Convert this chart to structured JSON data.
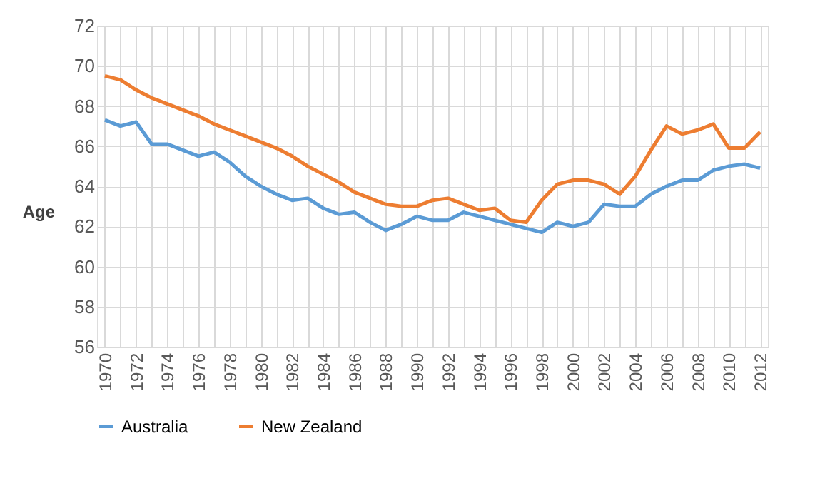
{
  "chart_data": {
    "type": "line",
    "ylabel": "Age",
    "categories": [
      "1970",
      null,
      "1972",
      null,
      "1974",
      null,
      "1976",
      null,
      "1978",
      null,
      "1980",
      null,
      "1982",
      null,
      "1984",
      null,
      "1986",
      null,
      "1988",
      null,
      "1990",
      null,
      "1992",
      null,
      "1994",
      null,
      "1996",
      null,
      "1998",
      null,
      "2000",
      null,
      "2002",
      null,
      "2004",
      null,
      "2006",
      null,
      "2008",
      null,
      "2010",
      null,
      "2012"
    ],
    "series": [
      {
        "name": "Australia",
        "color": "#5b9bd5",
        "values": [
          67.3,
          67.0,
          67.2,
          66.1,
          66.1,
          65.8,
          65.5,
          65.7,
          65.2,
          64.5,
          64.0,
          63.6,
          63.3,
          63.4,
          62.9,
          62.6,
          62.7,
          62.2,
          61.8,
          62.1,
          62.5,
          62.3,
          62.3,
          62.7,
          62.5,
          62.3,
          62.1,
          61.9,
          61.7,
          62.2,
          62.0,
          62.2,
          63.1,
          63.0,
          63.0,
          63.6,
          64.0,
          64.3,
          64.3,
          64.8,
          65.0,
          65.1,
          64.9
        ]
      },
      {
        "name": "New Zealand",
        "color": "#ed7d31",
        "values": [
          69.5,
          69.3,
          68.8,
          68.4,
          68.1,
          67.8,
          67.5,
          67.1,
          66.8,
          66.5,
          66.2,
          65.9,
          65.5,
          65.0,
          64.6,
          64.2,
          63.7,
          63.4,
          63.1,
          63.0,
          63.0,
          63.3,
          63.4,
          63.1,
          62.8,
          62.9,
          62.3,
          62.2,
          63.3,
          64.1,
          64.3,
          64.3,
          64.1,
          63.6,
          64.5,
          65.8,
          67.0,
          66.6,
          66.8,
          67.1,
          65.9,
          65.9,
          66.7
        ]
      }
    ],
    "ylim": [
      56,
      72
    ],
    "yticks": [
      56,
      58,
      60,
      62,
      64,
      66,
      68,
      70,
      72
    ],
    "grid": true,
    "legend": "bottom",
    "line_style": "solid",
    "marker": "none"
  }
}
